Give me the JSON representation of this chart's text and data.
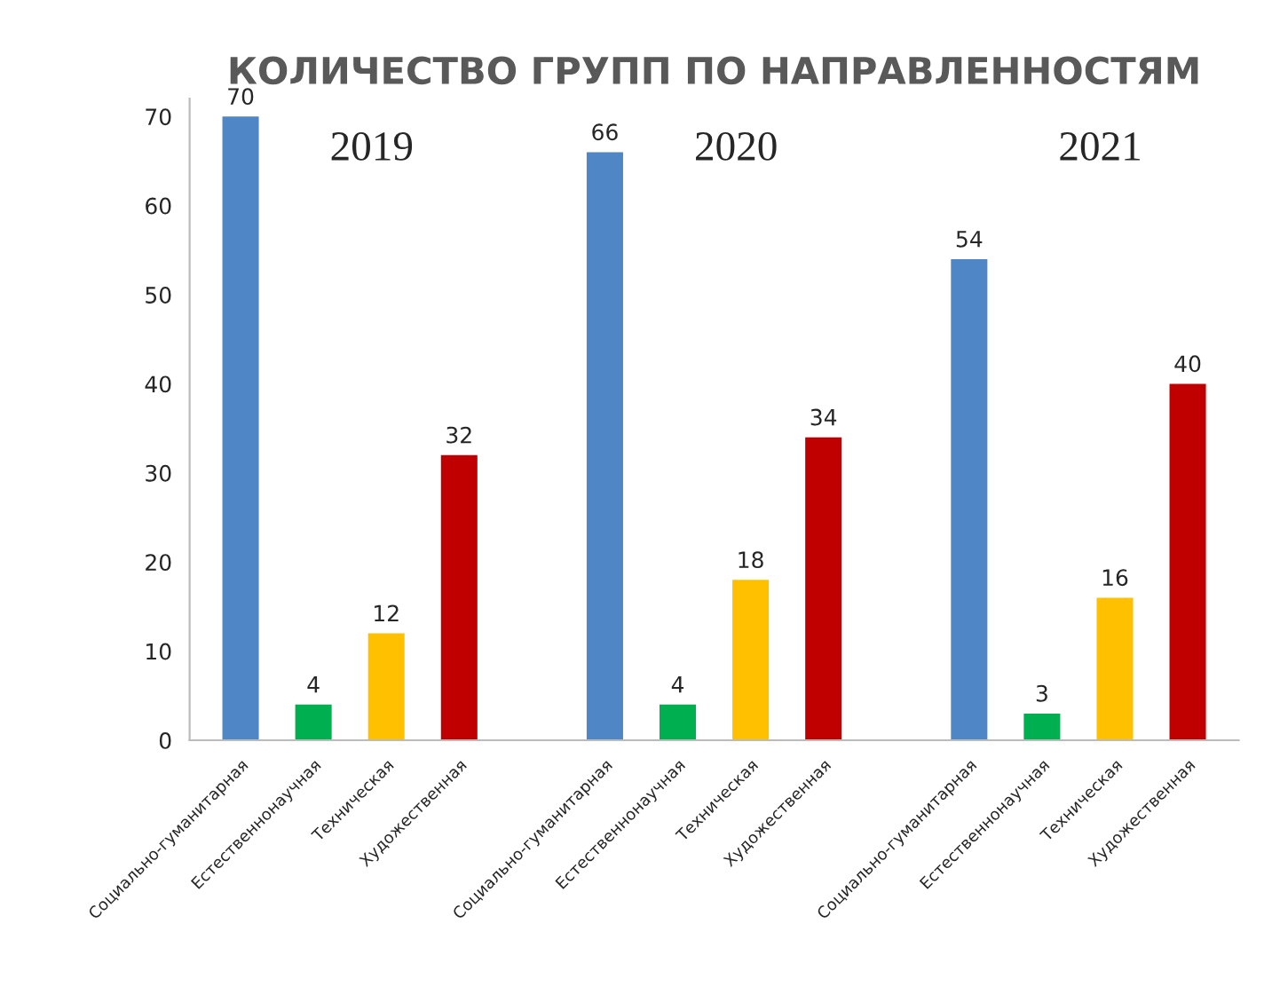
{
  "chart_data": {
    "type": "bar",
    "title": "КОЛИЧЕСТВО ГРУПП ПО НАПРАВЛЕННОСТЯМ",
    "categories": [
      "Социально-гуманитарная",
      "Естественнонаучная",
      "Техническая",
      "Художественная",
      null,
      "Социально-гуманитарная",
      "Естественнонаучная",
      "Техническая",
      "Художественная",
      null,
      "Социально-гуманитарная",
      "Естественнонаучная",
      "Техническая",
      "Художественная"
    ],
    "values": [
      70,
      4,
      12,
      32,
      null,
      66,
      4,
      18,
      34,
      null,
      54,
      3,
      16,
      40
    ],
    "colors": [
      "#4f86c6",
      "#00b050",
      "#ffc000",
      "#c00000",
      "#ffffff",
      "#4f86c6",
      "#00b050",
      "#ffc000",
      "#c00000",
      "#ffffff",
      "#4f86c6",
      "#00b050",
      "#ffc000",
      "#c00000"
    ],
    "annotations": [
      "2019",
      "2020",
      "2021"
    ],
    "ylim": [
      0,
      72
    ],
    "yticks": [
      0,
      10,
      20,
      30,
      40,
      50,
      60,
      70
    ],
    "data_labels": true,
    "grid": false,
    "legend": false
  }
}
